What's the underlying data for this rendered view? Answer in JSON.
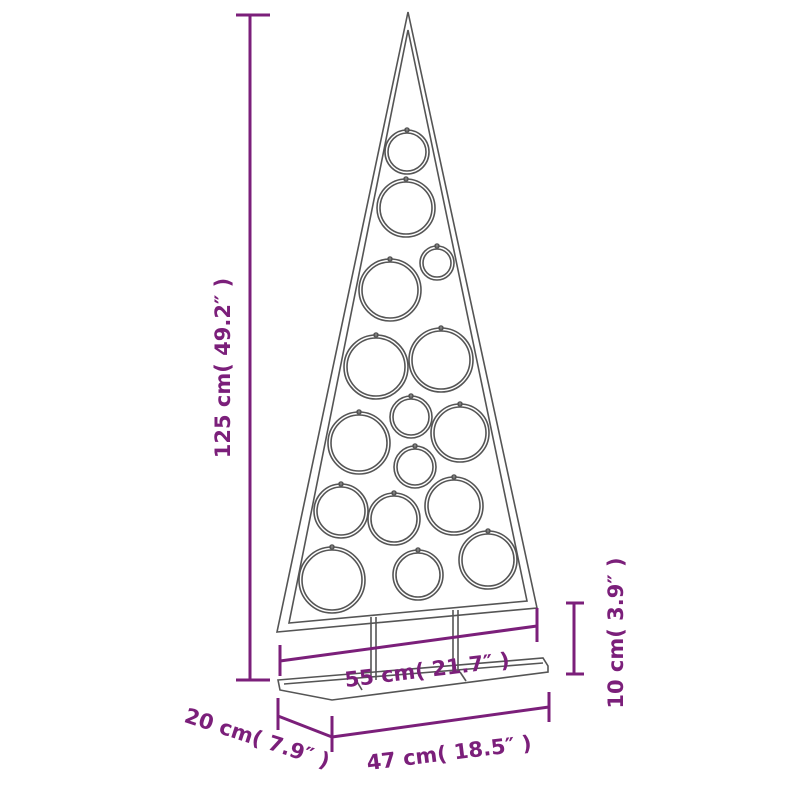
{
  "colors": {
    "dimension": "#7b1f7a",
    "outline": "#555555"
  },
  "dimensions": {
    "height": "125 cm( 49.2″ )",
    "tree_width": "55 cm( 21.7″ )",
    "stand_height": "10 cm( 3.9″ )",
    "base_depth": "20 cm( 7.9″ )",
    "base_width": "47 cm( 18.5″ )"
  }
}
